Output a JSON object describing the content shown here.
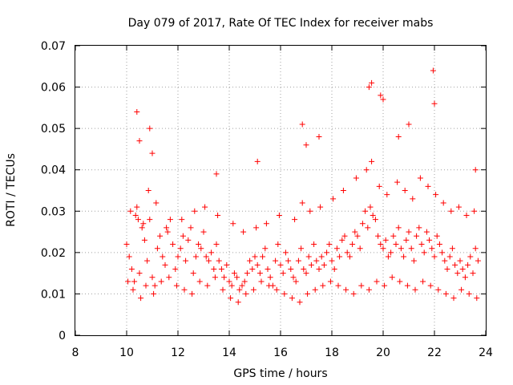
{
  "chart_data": {
    "type": "scatter",
    "title": "Day 079 of 2017, Rate Of TEC Index for receiver mabs",
    "xlabel": "GPS time / hours",
    "ylabel": "ROTI / TECUs",
    "xlim": [
      8,
      24
    ],
    "ylim": [
      0,
      0.07
    ],
    "x_ticks": [
      "8",
      "10",
      "12",
      "14",
      "16",
      "18",
      "20",
      "22",
      "24"
    ],
    "y_ticks": [
      "0",
      "0.01",
      "0.02",
      "0.03",
      "0.04",
      "0.05",
      "0.06",
      "0.07"
    ],
    "grid": true,
    "legend": "none",
    "marker": "+",
    "color": "#ff0000",
    "series": [
      {
        "x": [
          10.0,
          10.1,
          10.2,
          10.3,
          10.35,
          10.4,
          10.45,
          10.5,
          10.6,
          10.7,
          10.8,
          10.85,
          10.9,
          11.0,
          11.1,
          11.2,
          11.3,
          11.4,
          11.5,
          11.6,
          11.7,
          11.8,
          11.9,
          12.0,
          12.1,
          12.2,
          12.3,
          12.4,
          12.5,
          12.6,
          12.7,
          12.8,
          12.9,
          13.0,
          13.1,
          13.2,
          13.3,
          13.4,
          13.5,
          13.6,
          13.7,
          13.8,
          13.9,
          14.0,
          14.1,
          14.2,
          14.3,
          14.4,
          14.5,
          14.6,
          14.7,
          14.8,
          14.9,
          15.0,
          15.1,
          15.2,
          15.3,
          15.4,
          15.5,
          15.6,
          15.7,
          15.8,
          15.9,
          16.0,
          16.1,
          16.2,
          16.3,
          16.4,
          16.5,
          16.6,
          16.7,
          16.8,
          16.9,
          17.0,
          17.1,
          17.2,
          17.3,
          17.4,
          17.5,
          17.6,
          17.7,
          17.8,
          17.9,
          18.0,
          18.1,
          18.2,
          18.3,
          18.4,
          18.5,
          18.6,
          18.7,
          18.8,
          18.9,
          19.0,
          19.1,
          19.2,
          19.3,
          19.4,
          19.5,
          19.6,
          19.7,
          19.8,
          19.9,
          20.0,
          20.1,
          20.2,
          20.3,
          20.4,
          20.5,
          20.6,
          20.7,
          20.8,
          20.9,
          21.0,
          21.1,
          21.2,
          21.3,
          21.4,
          21.5,
          21.6,
          21.7,
          21.8,
          21.9,
          22.0,
          22.1,
          22.2,
          22.3,
          22.4,
          22.5,
          22.6,
          22.7,
          22.8,
          22.9,
          23.0,
          23.1,
          23.2,
          23.3,
          23.4,
          23.5,
          23.6,
          23.7,
          10.05,
          10.25,
          10.55,
          10.75,
          11.05,
          11.35,
          11.65,
          11.95,
          12.25,
          12.55,
          12.85,
          13.15,
          13.45,
          13.75,
          14.05,
          14.35,
          14.65,
          14.95,
          15.25,
          15.55,
          15.85,
          16.15,
          16.45,
          16.75,
          17.05,
          17.35,
          17.65,
          17.95,
          18.25,
          18.55,
          18.85,
          19.15,
          19.45,
          19.75,
          20.05,
          20.35,
          20.65,
          20.95,
          21.25,
          21.55,
          21.85,
          22.15,
          22.45,
          22.75,
          23.05,
          23.35,
          23.65,
          10.15,
          10.65,
          11.15,
          11.55,
          12.15,
          12.65,
          13.05,
          13.55,
          14.15,
          14.55,
          15.05,
          15.45,
          15.95,
          16.55,
          16.85,
          17.15,
          17.55,
          18.05,
          18.45,
          18.95,
          19.35,
          19.55,
          19.85,
          20.15,
          20.55,
          20.85,
          21.15,
          21.45,
          21.75,
          22.05,
          22.35,
          22.65,
          22.95,
          23.25,
          23.55,
          10.4,
          10.5,
          10.9,
          11.0,
          13.5,
          15.1,
          16.85,
          17.0,
          17.5,
          19.45,
          19.55,
          19.9,
          20.0,
          20.6,
          21.0,
          21.95,
          22.0,
          23.6
        ],
        "y": [
          0.022,
          0.019,
          0.016,
          0.013,
          0.029,
          0.031,
          0.028,
          0.015,
          0.026,
          0.023,
          0.018,
          0.035,
          0.028,
          0.014,
          0.012,
          0.021,
          0.024,
          0.019,
          0.017,
          0.025,
          0.028,
          0.022,
          0.016,
          0.019,
          0.021,
          0.024,
          0.018,
          0.023,
          0.026,
          0.015,
          0.019,
          0.022,
          0.021,
          0.025,
          0.019,
          0.018,
          0.02,
          0.016,
          0.022,
          0.018,
          0.016,
          0.014,
          0.017,
          0.013,
          0.012,
          0.015,
          0.014,
          0.011,
          0.012,
          0.013,
          0.015,
          0.018,
          0.016,
          0.019,
          0.017,
          0.015,
          0.019,
          0.021,
          0.016,
          0.014,
          0.012,
          0.018,
          0.022,
          0.017,
          0.015,
          0.02,
          0.018,
          0.016,
          0.014,
          0.013,
          0.018,
          0.021,
          0.016,
          0.015,
          0.019,
          0.017,
          0.022,
          0.018,
          0.016,
          0.019,
          0.017,
          0.02,
          0.022,
          0.018,
          0.016,
          0.021,
          0.019,
          0.023,
          0.024,
          0.02,
          0.019,
          0.022,
          0.025,
          0.024,
          0.021,
          0.027,
          0.03,
          0.026,
          0.031,
          0.029,
          0.028,
          0.024,
          0.022,
          0.021,
          0.023,
          0.019,
          0.02,
          0.024,
          0.022,
          0.026,
          0.021,
          0.019,
          0.023,
          0.025,
          0.021,
          0.018,
          0.024,
          0.026,
          0.022,
          0.02,
          0.025,
          0.023,
          0.021,
          0.019,
          0.024,
          0.022,
          0.02,
          0.018,
          0.016,
          0.019,
          0.021,
          0.017,
          0.015,
          0.018,
          0.016,
          0.014,
          0.017,
          0.019,
          0.015,
          0.021,
          0.018,
          0.013,
          0.011,
          0.009,
          0.012,
          0.01,
          0.013,
          0.014,
          0.012,
          0.011,
          0.01,
          0.013,
          0.012,
          0.014,
          0.011,
          0.009,
          0.008,
          0.01,
          0.011,
          0.013,
          0.012,
          0.011,
          0.01,
          0.009,
          0.008,
          0.01,
          0.011,
          0.012,
          0.013,
          0.012,
          0.011,
          0.01,
          0.012,
          0.011,
          0.013,
          0.012,
          0.014,
          0.013,
          0.012,
          0.011,
          0.013,
          0.012,
          0.011,
          0.01,
          0.009,
          0.011,
          0.01,
          0.009,
          0.03,
          0.027,
          0.032,
          0.026,
          0.028,
          0.03,
          0.031,
          0.029,
          0.027,
          0.025,
          0.026,
          0.027,
          0.029,
          0.028,
          0.032,
          0.03,
          0.031,
          0.033,
          0.035,
          0.038,
          0.04,
          0.042,
          0.036,
          0.034,
          0.037,
          0.035,
          0.033,
          0.038,
          0.036,
          0.034,
          0.032,
          0.03,
          0.031,
          0.029,
          0.03,
          0.054,
          0.047,
          0.05,
          0.044,
          0.039,
          0.042,
          0.051,
          0.046,
          0.048,
          0.06,
          0.061,
          0.058,
          0.057,
          0.048,
          0.051,
          0.064,
          0.056,
          0.04
        ]
      }
    ]
  }
}
